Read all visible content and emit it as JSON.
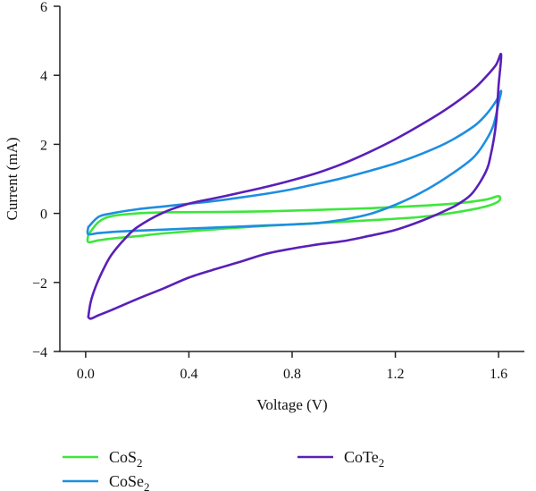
{
  "chart_data": {
    "type": "line",
    "title": "",
    "xlabel": "Voltage (V)",
    "ylabel": "Current (mA)",
    "xlim": [
      -0.1,
      1.7
    ],
    "ylim": [
      -4,
      6
    ],
    "xticks": [
      0.0,
      0.4,
      0.8,
      1.2,
      1.6
    ],
    "xtick_labels": [
      "0.0",
      "0.4",
      "0.8",
      "1.2",
      "1.6"
    ],
    "yticks": [
      -4,
      -2,
      0,
      2,
      4,
      6
    ],
    "ytick_labels": [
      "−4",
      "−2",
      "0",
      "2",
      "4",
      "6"
    ],
    "grid": false,
    "legend_position": "bottom",
    "series": [
      {
        "name": "CoS",
        "subscript": "2",
        "color": "#3ee63c",
        "x": [
          0.01,
          0.05,
          0.1,
          0.2,
          0.3,
          0.5,
          0.7,
          0.9,
          1.1,
          1.3,
          1.45,
          1.55,
          1.6,
          1.6,
          1.55,
          1.45,
          1.3,
          1.1,
          0.9,
          0.7,
          0.5,
          0.3,
          0.2,
          0.1,
          0.05,
          0.01,
          0.01
        ],
        "y": [
          -0.62,
          -0.25,
          -0.08,
          0.0,
          0.03,
          0.04,
          0.06,
          0.1,
          0.15,
          0.22,
          0.3,
          0.4,
          0.5,
          0.35,
          0.2,
          0.05,
          -0.1,
          -0.2,
          -0.28,
          -0.36,
          -0.46,
          -0.58,
          -0.66,
          -0.73,
          -0.78,
          -0.83,
          -0.62
        ]
      },
      {
        "name": "CoSe",
        "subscript": "2",
        "color": "#1e8ee0",
        "x": [
          0.01,
          0.05,
          0.1,
          0.2,
          0.3,
          0.4,
          0.5,
          0.6,
          0.7,
          0.8,
          0.9,
          1.0,
          1.1,
          1.2,
          1.3,
          1.4,
          1.5,
          1.55,
          1.59,
          1.61,
          1.6,
          1.58,
          1.55,
          1.5,
          1.4,
          1.3,
          1.2,
          1.1,
          1.0,
          0.9,
          0.8,
          0.7,
          0.6,
          0.4,
          0.2,
          0.1,
          0.05,
          0.01,
          0.01
        ],
        "y": [
          -0.4,
          -0.1,
          0.0,
          0.12,
          0.2,
          0.28,
          0.36,
          0.46,
          0.57,
          0.7,
          0.86,
          1.03,
          1.23,
          1.45,
          1.72,
          2.05,
          2.5,
          2.85,
          3.25,
          3.55,
          3.2,
          2.55,
          2.1,
          1.6,
          1.05,
          0.6,
          0.25,
          -0.02,
          -0.18,
          -0.28,
          -0.32,
          -0.35,
          -0.38,
          -0.44,
          -0.5,
          -0.54,
          -0.57,
          -0.6,
          -0.4
        ]
      },
      {
        "name": "CoTe",
        "subscript": "2",
        "color": "#5a1fb8",
        "x": [
          0.01,
          0.02,
          0.04,
          0.07,
          0.1,
          0.15,
          0.2,
          0.3,
          0.4,
          0.5,
          0.6,
          0.7,
          0.8,
          0.9,
          1.0,
          1.1,
          1.2,
          1.3,
          1.4,
          1.5,
          1.55,
          1.59,
          1.61,
          1.6,
          1.59,
          1.57,
          1.55,
          1.5,
          1.45,
          1.4,
          1.3,
          1.2,
          1.1,
          1.0,
          0.9,
          0.8,
          0.7,
          0.6,
          0.5,
          0.4,
          0.3,
          0.2,
          0.1,
          0.05,
          0.02,
          0.01
        ],
        "y": [
          -3.0,
          -2.55,
          -2.1,
          -1.6,
          -1.2,
          -0.75,
          -0.4,
          0.02,
          0.28,
          0.44,
          0.6,
          0.77,
          0.96,
          1.18,
          1.45,
          1.78,
          2.15,
          2.57,
          3.03,
          3.58,
          3.95,
          4.3,
          4.6,
          3.7,
          2.6,
          1.7,
          1.2,
          0.6,
          0.3,
          0.1,
          -0.22,
          -0.48,
          -0.65,
          -0.8,
          -0.9,
          -1.02,
          -1.17,
          -1.4,
          -1.62,
          -1.86,
          -2.18,
          -2.48,
          -2.8,
          -2.95,
          -3.05,
          -3.0
        ]
      }
    ]
  }
}
